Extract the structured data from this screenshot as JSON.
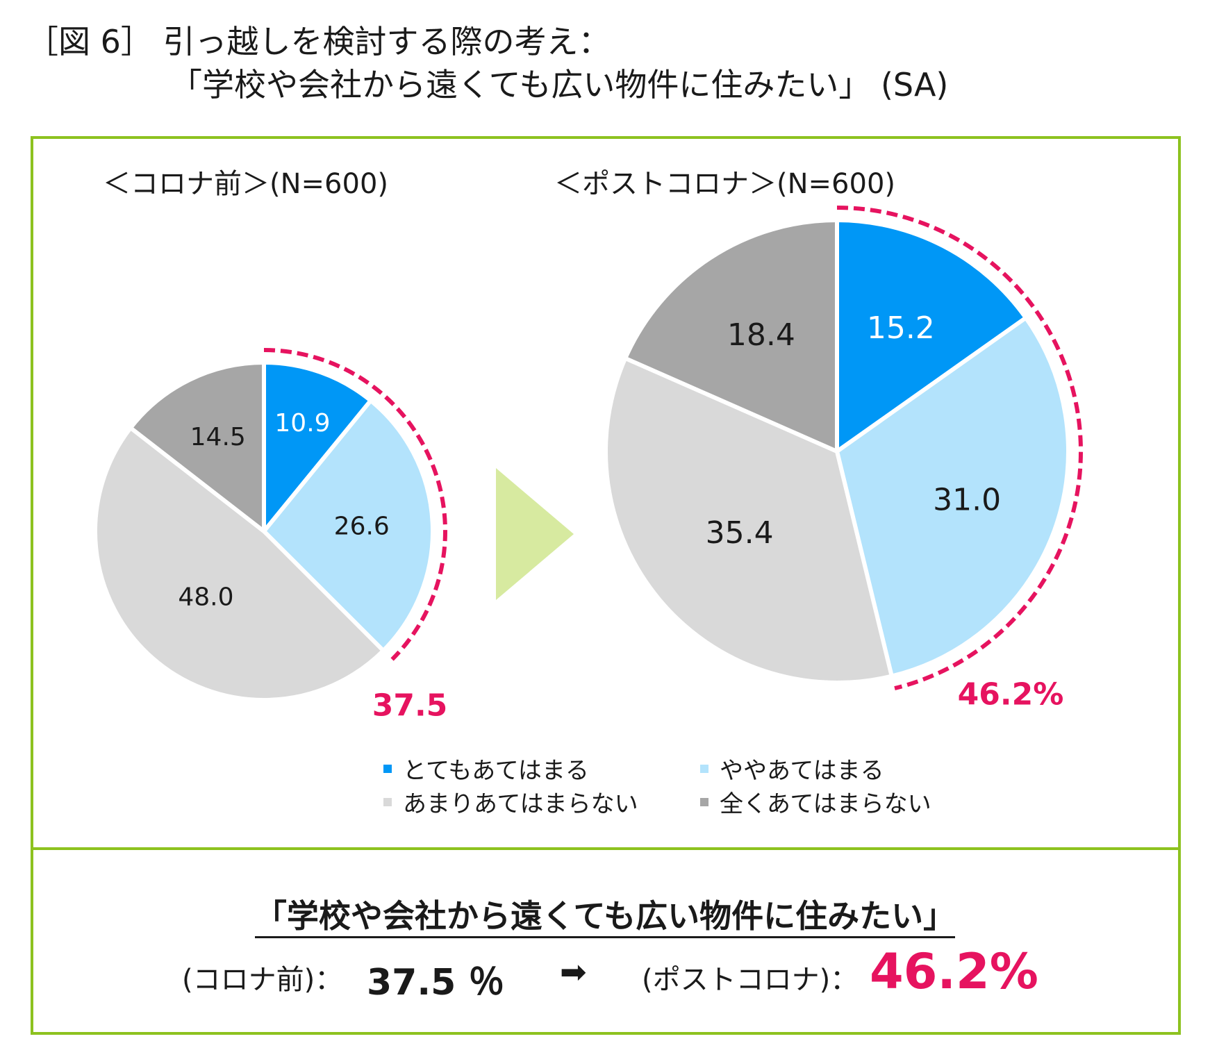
{
  "title_line1": "［図 6］ 引っ越しを検討する際の考え：",
  "title_line2": "「学校や会社から遠くても広い物件に住みたい」 (SA)",
  "colors": {
    "very": "#0097f6",
    "somewhat": "#b3e3fc",
    "not_much": "#d9d9d9",
    "not_at_all": "#a6a6a6",
    "highlight": "#e6135f",
    "frame": "#8dc21f",
    "arrow": "#d7eaa0"
  },
  "chart_data": [
    {
      "type": "pie",
      "title": "＜コロナ前＞(N=600)",
      "categories": [
        "とてもあてはまる",
        "ややあてはまる",
        "あまりあてはまらない",
        "全くあてはまらない"
      ],
      "values": [
        10.9,
        26.6,
        48.0,
        14.5
      ],
      "value_labels": [
        "10.9",
        "26.6",
        "48.0",
        "14.5"
      ],
      "highlight_label": "37.5"
    },
    {
      "type": "pie",
      "title": "＜ポストコロナ＞(N=600)",
      "categories": [
        "とてもあてはまる",
        "ややあてはまる",
        "あまりあてはまらない",
        "全くあてはまらない"
      ],
      "values": [
        15.2,
        31.0,
        35.4,
        18.4
      ],
      "value_labels": [
        "15.2",
        "31.0",
        "35.4",
        "18.4"
      ],
      "highlight_label": "46.2%"
    }
  ],
  "legend": {
    "items": [
      "とてもあてはまる",
      "ややあてはまる",
      "あまりあてはまらない",
      "全くあてはまらない"
    ]
  },
  "summary": {
    "title": "「学校や会社から遠くても広い物件に住みたい」",
    "before_label": "(コロナ前)：",
    "before_value": "37.5 ％",
    "arrow": "➡",
    "after_label": "(ポストコロナ)：",
    "after_value": "46.2%"
  }
}
